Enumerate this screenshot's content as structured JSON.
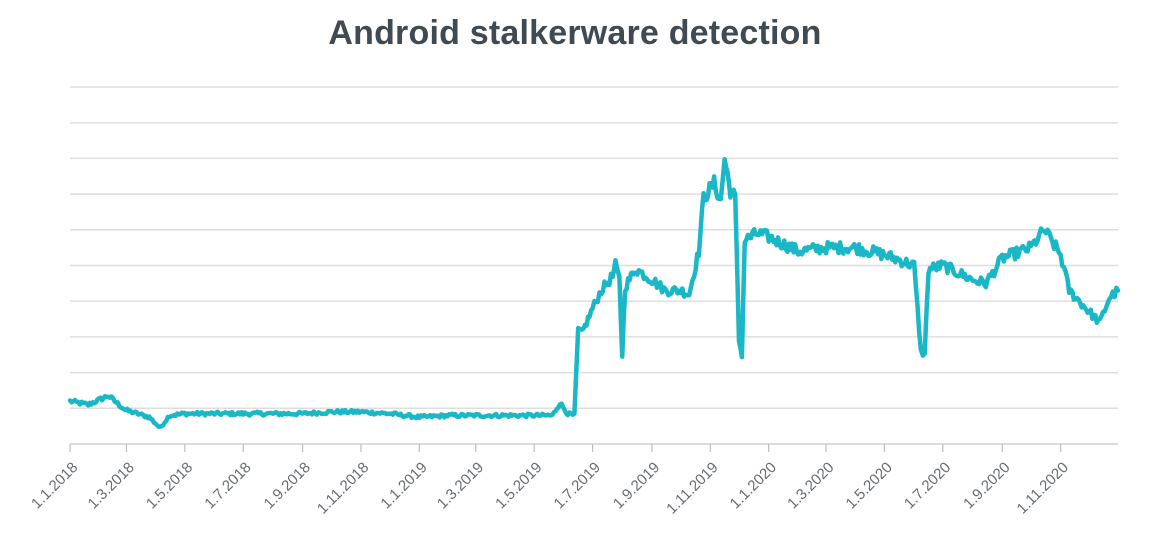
{
  "chart_data": {
    "type": "line",
    "title": "Android stalkerware detection",
    "xlabel": "",
    "ylabel": "",
    "grid": true,
    "y_tick_labels_visible": false,
    "y_gridline_count": 10,
    "legend": "none",
    "line_color": "#1ab8c6",
    "x_tick_labels": [
      "1.1.2018",
      "1.3.2018",
      "1.5.2018",
      "1.7.2018",
      "1.9.2018",
      "1.11.2018",
      "1.1.2019",
      "1.3.2019",
      "1.5.2019",
      "1.7.2019",
      "1.9.2019",
      "1.11.2019",
      "1.1.2020",
      "1.3.2020",
      "1.5.2020",
      "1.7.2020",
      "1.9.2020",
      "1.11.2020"
    ],
    "x_range": [
      "1.1.2018",
      "31.12.2020"
    ],
    "ylim": [
      0,
      10
    ],
    "series": [
      {
        "points": [
          [
            "1.1.2018",
            1.2
          ],
          [
            "20.1.2018",
            1.1
          ],
          [
            "10.2.2018",
            1.35
          ],
          [
            "28.2.2018",
            0.95
          ],
          [
            "25.3.2018",
            0.75
          ],
          [
            "5.4.2018",
            0.45
          ],
          [
            "15.4.2018",
            0.8
          ],
          [
            "1.5.2018",
            0.85
          ],
          [
            "1.6.2018",
            0.85
          ],
          [
            "1.7.2018",
            0.85
          ],
          [
            "1.8.2018",
            0.85
          ],
          [
            "1.9.2018",
            0.85
          ],
          [
            "1.10.2018",
            0.9
          ],
          [
            "1.11.2018",
            0.9
          ],
          [
            "1.12.2018",
            0.85
          ],
          [
            "1.1.2019",
            0.75
          ],
          [
            "1.2.2019",
            0.8
          ],
          [
            "1.3.2019",
            0.8
          ],
          [
            "1.4.2019",
            0.8
          ],
          [
            "1.5.2019",
            0.8
          ],
          [
            "20.5.2019",
            0.8
          ],
          [
            "28.5.2019",
            1.15
          ],
          [
            "5.6.2019",
            0.85
          ],
          [
            "12.6.2019",
            0.8
          ],
          [
            "16.6.2019",
            3.2
          ],
          [
            "20.6.2019",
            3.1
          ],
          [
            "1.7.2019",
            3.8
          ],
          [
            "10.7.2019",
            4.3
          ],
          [
            "22.7.2019",
            4.7
          ],
          [
            "25.7.2019",
            5.0
          ],
          [
            "29.7.2019",
            4.6
          ],
          [
            "1.8.2019",
            2.5
          ],
          [
            "4.8.2019",
            4.4
          ],
          [
            "15.8.2019",
            4.9
          ],
          [
            "1.9.2019",
            4.6
          ],
          [
            "15.9.2019",
            4.3
          ],
          [
            "1.10.2019",
            4.3
          ],
          [
            "10.10.2019",
            4.2
          ],
          [
            "20.10.2019",
            5.4
          ],
          [
            "25.10.2019",
            6.9
          ],
          [
            "5.11.2019",
            7.3
          ],
          [
            "12.11.2019",
            6.8
          ],
          [
            "16.11.2019",
            8.0
          ],
          [
            "22.11.2019",
            7.1
          ],
          [
            "27.11.2019",
            6.9
          ],
          [
            "1.12.2019",
            2.9
          ],
          [
            "4.12.2019",
            2.5
          ],
          [
            "7.12.2019",
            5.7
          ],
          [
            "20.12.2019",
            5.9
          ],
          [
            "1.1.2020",
            5.8
          ],
          [
            "1.2.2020",
            5.4
          ],
          [
            "1.3.2020",
            5.5
          ],
          [
            "1.4.2020",
            5.5
          ],
          [
            "1.5.2020",
            5.3
          ],
          [
            "1.6.2020",
            5.0
          ],
          [
            "8.6.2020",
            2.6
          ],
          [
            "12.6.2020",
            2.5
          ],
          [
            "16.6.2020",
            4.9
          ],
          [
            "1.7.2020",
            5.0
          ],
          [
            "1.8.2020",
            4.6
          ],
          [
            "15.8.2020",
            4.5
          ],
          [
            "1.9.2020",
            5.2
          ],
          [
            "1.10.2020",
            5.5
          ],
          [
            "15.10.2020",
            6.0
          ],
          [
            "1.11.2020",
            5.3
          ],
          [
            "10.11.2020",
            4.3
          ],
          [
            "1.12.2020",
            3.7
          ],
          [
            "12.12.2020",
            3.4
          ],
          [
            "22.12.2020",
            4.1
          ],
          [
            "31.12.2020",
            4.3
          ]
        ]
      }
    ]
  }
}
